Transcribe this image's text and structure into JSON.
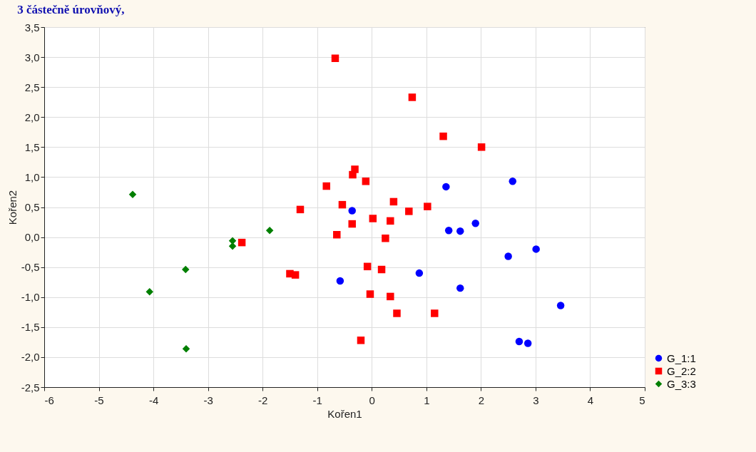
{
  "chart_data": {
    "type": "scatter",
    "title": "3 částečně úrovňový,",
    "xlabel": "Kořen1",
    "ylabel": "Kořen2",
    "xlim": [
      -6,
      5
    ],
    "xticks": [
      -6,
      -5,
      -4,
      -3,
      -2,
      -1,
      0,
      1,
      2,
      3,
      4,
      5
    ],
    "ylim": [
      -2.5,
      3.5
    ],
    "yticks": [
      {
        "value": -2.5,
        "label": "-2,5"
      },
      {
        "value": -2,
        "label": "-2,0"
      },
      {
        "value": -1.5,
        "label": "-1,5"
      },
      {
        "value": -1,
        "label": "-1,0"
      },
      {
        "value": -0.5,
        "label": "-0,5"
      },
      {
        "value": 0,
        "label": "0,0"
      },
      {
        "value": 0.5,
        "label": "0,5"
      },
      {
        "value": 1,
        "label": "1,0"
      },
      {
        "value": 1.5,
        "label": "1,5"
      },
      {
        "value": 2,
        "label": "2,0"
      },
      {
        "value": 2.5,
        "label": "2,5"
      },
      {
        "value": 3,
        "label": "3,0"
      },
      {
        "value": 3.5,
        "label": "3,5"
      }
    ],
    "grid": true,
    "legend": "bottom right",
    "series": [
      {
        "name": "G_1:1",
        "color": "#0000ff",
        "marker": "circle",
        "x": [
          -0.36,
          -0.58,
          1.36,
          1.41,
          1.62,
          1.9,
          2.58,
          2.5,
          3.01,
          0.87,
          1.62,
          3.46,
          2.7,
          2.86
        ],
        "values": [
          0.44,
          -0.73,
          0.84,
          0.11,
          0.1,
          0.23,
          0.93,
          -0.32,
          -0.2,
          -0.6,
          -0.85,
          -1.14,
          -1.74,
          -1.77
        ]
      },
      {
        "name": "G_2:2",
        "color": "#ff0000",
        "marker": "square",
        "x": [
          -0.67,
          0.74,
          1.31,
          2.01,
          -0.31,
          -0.35,
          -0.11,
          -0.83,
          -0.54,
          0.4,
          -1.31,
          0.68,
          1.02,
          0.02,
          -0.36,
          0.34,
          -0.64,
          0.25,
          -2.38,
          -1.5,
          -1.4,
          -0.08,
          0.18,
          -0.03,
          0.34,
          0.46,
          1.15,
          -0.2
        ],
        "values": [
          2.98,
          2.33,
          1.68,
          1.5,
          1.13,
          1.04,
          0.93,
          0.85,
          0.54,
          0.59,
          0.46,
          0.43,
          0.51,
          0.31,
          0.22,
          0.27,
          0.04,
          -0.02,
          -0.09,
          -0.61,
          -0.63,
          -0.49,
          -0.54,
          -0.95,
          -0.99,
          -1.27,
          -1.27,
          -1.72
        ]
      },
      {
        "name": "G_3:3",
        "color": "#007f00",
        "marker": "diamond",
        "x": [
          -4.38,
          -1.87,
          -2.55,
          -2.55,
          -3.41,
          -4.07,
          -3.4
        ],
        "values": [
          0.71,
          0.11,
          -0.06,
          -0.15,
          -0.54,
          -0.91,
          -1.86
        ]
      }
    ]
  }
}
